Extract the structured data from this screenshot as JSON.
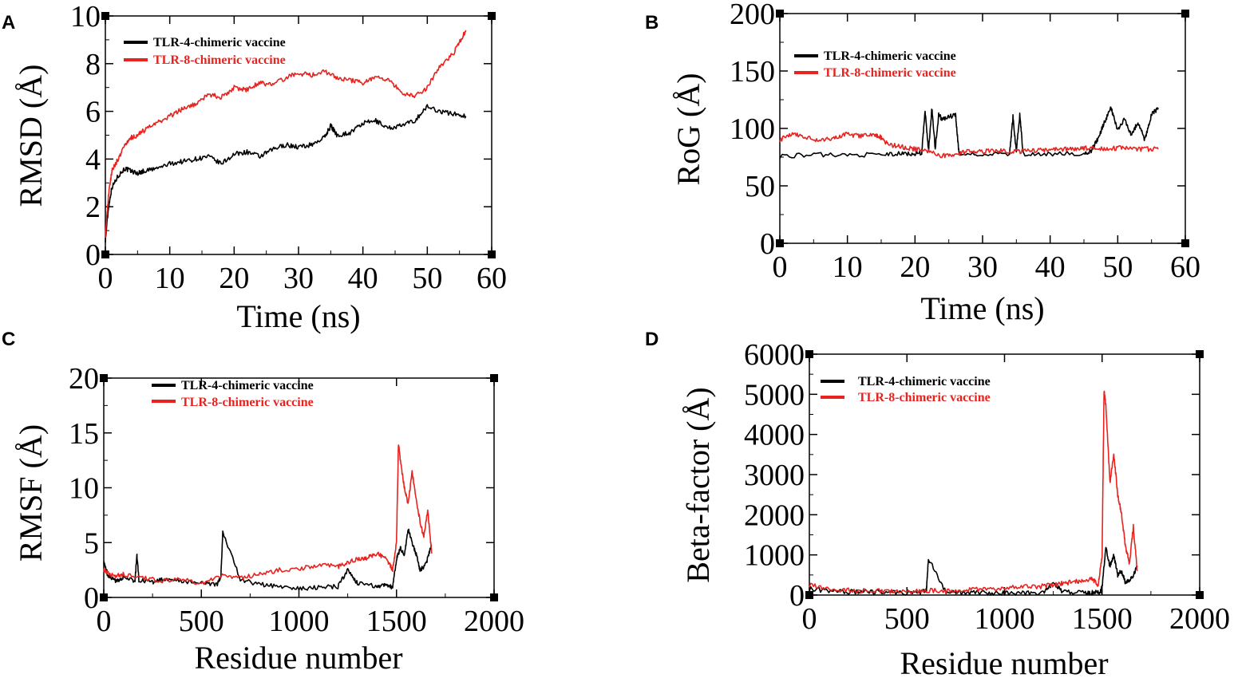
{
  "colors": {
    "series1": "#000000",
    "series2": "#e8231f"
  },
  "chart_data": [
    {
      "panel": "A",
      "type": "line",
      "xlabel": "Time (ns)",
      "ylabel": "RMSD (Å)",
      "xlim": [
        0,
        60
      ],
      "ylim": [
        0,
        10
      ],
      "xticks": [
        0,
        10,
        20,
        30,
        40,
        50,
        60
      ],
      "yticks": [
        0,
        2,
        4,
        6,
        8,
        10
      ],
      "xtick_labels": [
        "0",
        "10",
        "20",
        "30",
        "40",
        "50",
        "60"
      ],
      "ytick_labels": [
        "0",
        "2",
        "4",
        "6",
        "8",
        "10"
      ],
      "legend": "top-left",
      "series": [
        {
          "name": "TLR-4-chimeric vaccine",
          "x": [
            0,
            0.5,
            1,
            2,
            3,
            4,
            5,
            6,
            8,
            10,
            12,
            14,
            16,
            18,
            20,
            22,
            24,
            26,
            28,
            30,
            32,
            34,
            35,
            36,
            38,
            40,
            42,
            44,
            46,
            48,
            50,
            52,
            54,
            56
          ],
          "y": [
            0.6,
            2.0,
            2.8,
            3.3,
            3.6,
            3.5,
            3.4,
            3.5,
            3.6,
            3.8,
            3.9,
            4.0,
            4.1,
            3.8,
            4.2,
            4.3,
            4.1,
            4.4,
            4.6,
            4.5,
            4.6,
            4.9,
            5.4,
            5.0,
            5.1,
            5.5,
            5.6,
            5.3,
            5.4,
            5.6,
            6.2,
            6.0,
            5.9,
            5.8
          ]
        },
        {
          "name": "TLR-8-chimeric vaccine",
          "x": [
            0,
            0.5,
            1,
            2,
            3,
            4,
            5,
            6,
            8,
            10,
            12,
            14,
            16,
            18,
            20,
            22,
            24,
            26,
            28,
            30,
            32,
            34,
            36,
            38,
            40,
            42,
            44,
            46,
            48,
            50,
            52,
            54,
            55,
            56
          ],
          "y": [
            0.8,
            2.5,
            3.5,
            4.0,
            4.6,
            4.9,
            5.0,
            5.2,
            5.5,
            5.8,
            6.1,
            6.3,
            6.7,
            6.6,
            7.0,
            6.9,
            7.2,
            7.1,
            7.4,
            7.6,
            7.5,
            7.7,
            7.4,
            7.3,
            7.2,
            7.4,
            7.3,
            6.8,
            6.6,
            7.0,
            7.9,
            8.4,
            8.9,
            9.4
          ]
        }
      ]
    },
    {
      "panel": "B",
      "type": "line",
      "xlabel": "Time (ns)",
      "ylabel": "RoG (Å)",
      "xlim": [
        0,
        60
      ],
      "ylim": [
        0,
        200
      ],
      "xticks": [
        0,
        10,
        20,
        30,
        40,
        50,
        60
      ],
      "yticks": [
        0,
        50,
        100,
        150,
        200
      ],
      "xtick_labels": [
        "0",
        "10",
        "20",
        "30",
        "40",
        "50",
        "60"
      ],
      "ytick_labels": [
        "0",
        "50",
        "100",
        "150",
        "200"
      ],
      "legend": "top-left",
      "series": [
        {
          "name": "TLR-4-chimeric vaccine",
          "x": [
            0,
            5,
            10,
            15,
            18,
            20,
            21,
            21.5,
            22,
            22.5,
            23,
            23.5,
            24,
            25,
            26,
            26.5,
            30,
            34,
            34.5,
            35,
            35.5,
            36,
            40,
            45,
            46,
            47,
            48,
            49,
            50,
            51,
            52,
            53,
            54,
            55,
            56
          ],
          "y": [
            76,
            77,
            77,
            77,
            78,
            78,
            79,
            115,
            80,
            118,
            82,
            112,
            108,
            110,
            112,
            78,
            77,
            78,
            110,
            80,
            112,
            78,
            78,
            78,
            80,
            90,
            105,
            118,
            98,
            108,
            95,
            105,
            90,
            112,
            118
          ]
        },
        {
          "name": "TLR-8-chimeric vaccine",
          "x": [
            0,
            2,
            4,
            6,
            8,
            10,
            12,
            14,
            15,
            16,
            18,
            20,
            22,
            24,
            26,
            28,
            30,
            32,
            34,
            36,
            38,
            40,
            42,
            44,
            46,
            48,
            50,
            52,
            54,
            56
          ],
          "y": [
            90,
            96,
            92,
            89,
            92,
            95,
            93,
            95,
            92,
            86,
            84,
            82,
            80,
            76,
            78,
            80,
            80,
            81,
            80,
            80,
            81,
            81,
            82,
            82,
            83,
            82,
            83,
            82,
            82,
            82
          ]
        }
      ]
    },
    {
      "panel": "C",
      "type": "line",
      "xlabel": "Residue number",
      "ylabel": "RMSF (Å)",
      "xlim": [
        0,
        2000
      ],
      "ylim": [
        0,
        20
      ],
      "xticks": [
        0,
        500,
        1000,
        1500,
        2000
      ],
      "yticks": [
        0,
        5,
        10,
        15,
        20
      ],
      "xtick_labels": [
        "0",
        "500",
        "1000",
        "1500",
        "2000"
      ],
      "ytick_labels": [
        "0",
        "5",
        "10",
        "15",
        "20"
      ],
      "legend": "top-center",
      "series": [
        {
          "name": "TLR-4-chimeric vaccine",
          "x": [
            0,
            20,
            60,
            100,
            160,
            170,
            180,
            250,
            300,
            400,
            500,
            580,
            600,
            610,
            700,
            800,
            900,
            1000,
            1100,
            1200,
            1250,
            1300,
            1400,
            1450,
            1480,
            1500,
            1520,
            1540,
            1560,
            1580,
            1600,
            1620,
            1650,
            1680
          ],
          "y": [
            3.2,
            2.0,
            1.5,
            1.8,
            1.5,
            3.9,
            1.6,
            1.4,
            1.6,
            1.5,
            1.3,
            1.2,
            1.8,
            6.0,
            1.6,
            1.2,
            1.0,
            0.8,
            0.9,
            1.0,
            2.5,
            1.3,
            1.0,
            1.2,
            0.9,
            3.5,
            4.5,
            3.8,
            6.2,
            5.0,
            4.0,
            2.5,
            3.0,
            4.8
          ]
        },
        {
          "name": "TLR-8-chimeric vaccine",
          "x": [
            0,
            20,
            60,
            100,
            200,
            300,
            400,
            500,
            600,
            700,
            800,
            900,
            1000,
            1100,
            1200,
            1250,
            1300,
            1350,
            1400,
            1450,
            1480,
            1500,
            1510,
            1520,
            1540,
            1560,
            1580,
            1600,
            1620,
            1640,
            1660,
            1680
          ],
          "y": [
            2.5,
            2.2,
            2.0,
            2.1,
            1.8,
            1.5,
            1.7,
            1.2,
            2.0,
            1.8,
            2.1,
            2.5,
            2.6,
            3.0,
            2.8,
            3.2,
            3.5,
            3.6,
            4.0,
            3.5,
            2.5,
            5.0,
            14.0,
            12.5,
            10.0,
            8.5,
            11.5,
            9.0,
            7.0,
            5.5,
            8.0,
            4.0
          ]
        }
      ]
    },
    {
      "panel": "D",
      "type": "line",
      "xlabel": "Residue number",
      "ylabel": "Beta-factor (Å)",
      "xlim": [
        0,
        2000
      ],
      "ylim": [
        0,
        6000
      ],
      "xticks": [
        0,
        500,
        1000,
        1500,
        2000
      ],
      "yticks": [
        0,
        1000,
        2000,
        3000,
        4000,
        5000,
        6000
      ],
      "xtick_labels": [
        "0",
        "500",
        "1000",
        "1500",
        "2000"
      ],
      "ytick_labels": [
        "0",
        "1000",
        "2000",
        "3000",
        "4000",
        "5000",
        "6000"
      ],
      "legend": "top-left",
      "series": [
        {
          "name": "TLR-4-chimeric vaccine",
          "x": [
            0,
            100,
            200,
            300,
            400,
            500,
            580,
            600,
            610,
            700,
            800,
            900,
            1000,
            1100,
            1200,
            1250,
            1300,
            1400,
            1450,
            1490,
            1500,
            1520,
            1540,
            1560,
            1580,
            1600,
            1620,
            1650,
            1680
          ],
          "y": [
            150,
            100,
            80,
            90,
            70,
            60,
            80,
            120,
            900,
            70,
            60,
            50,
            40,
            50,
            60,
            300,
            80,
            50,
            60,
            50,
            200,
            1200,
            700,
            1000,
            500,
            600,
            300,
            400,
            700
          ]
        },
        {
          "name": "TLR-8-chimeric vaccine",
          "x": [
            0,
            100,
            200,
            300,
            400,
            500,
            600,
            700,
            800,
            900,
            1000,
            1100,
            1200,
            1250,
            1300,
            1350,
            1400,
            1450,
            1480,
            1500,
            1510,
            1520,
            1540,
            1560,
            1580,
            1600,
            1620,
            1640,
            1660,
            1680
          ],
          "y": [
            250,
            150,
            120,
            100,
            90,
            80,
            120,
            100,
            130,
            150,
            180,
            200,
            220,
            250,
            300,
            320,
            350,
            400,
            250,
            1000,
            5100,
            4700,
            2800,
            3500,
            2500,
            2000,
            1200,
            800,
            1700,
            600
          ]
        }
      ]
    }
  ]
}
